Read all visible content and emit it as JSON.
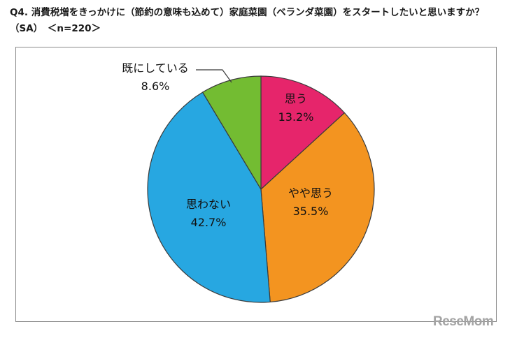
{
  "chart_data": {
    "type": "pie",
    "title": "Q4. 消費税増をきっかけに（節約の意味も込めて）家庭菜園（ベランダ菜園）をスタートしたいと思いますか？",
    "subtitle": "（SA）　＜n=220＞",
    "start_angle_deg": 0,
    "direction": "clockwise",
    "slices": [
      {
        "name": "思う",
        "value": 13.2,
        "label": "13.2%",
        "color": "#e6256b"
      },
      {
        "name": "やや思う",
        "value": 35.5,
        "label": "35.5%",
        "color": "#f39420"
      },
      {
        "name": "思わない",
        "value": 42.7,
        "label": "42.7%",
        "color": "#27a7e1"
      },
      {
        "name": "既にしている",
        "value": 8.6,
        "label": "8.6%",
        "color": "#73bc32"
      }
    ]
  },
  "watermark": "ReseMom"
}
